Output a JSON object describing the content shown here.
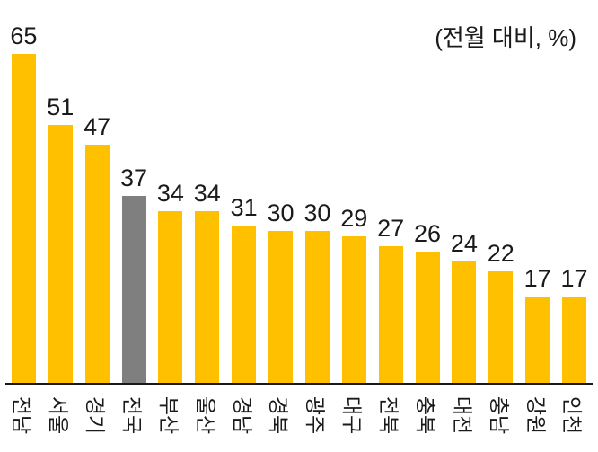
{
  "chart_data": {
    "type": "bar",
    "title": "",
    "annotation": "(전월 대비, %)",
    "categories": [
      "전남",
      "서울",
      "경기",
      "전국",
      "부산",
      "울산",
      "경남",
      "경북",
      "광주",
      "대구",
      "전북",
      "충북",
      "대전",
      "충남",
      "강원",
      "인천"
    ],
    "values": [
      65,
      51,
      47,
      37,
      34,
      34,
      31,
      30,
      30,
      29,
      27,
      26,
      24,
      22,
      17,
      17
    ],
    "xlabel": "",
    "ylabel": "",
    "ylim": [
      0,
      65
    ],
    "grid": false,
    "legend": "none",
    "bar_color": "#FFC000",
    "highlight_category": "전국",
    "highlight_index": 3,
    "highlight_color": "#7F7F7F",
    "axis_color": "#1a1a1a",
    "text_color": "#1a1a1a"
  }
}
